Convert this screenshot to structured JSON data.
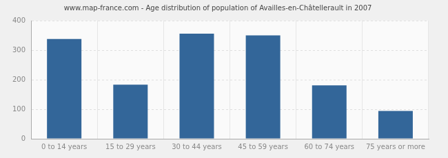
{
  "chart_data": {
    "type": "bar",
    "title": "www.map-france.com - Age distribution of population of Availles-en-Châtellerault in 2007",
    "categories": [
      "0 to 14 years",
      "15 to 29 years",
      "30 to 44 years",
      "45 to 59 years",
      "60 to 74 years",
      "75 years or more"
    ],
    "values": [
      338,
      183,
      356,
      350,
      181,
      94
    ],
    "color": "#336699",
    "ylim": [
      0,
      400
    ],
    "yticks": [
      0,
      100,
      200,
      300,
      400
    ],
    "grid": true
  }
}
